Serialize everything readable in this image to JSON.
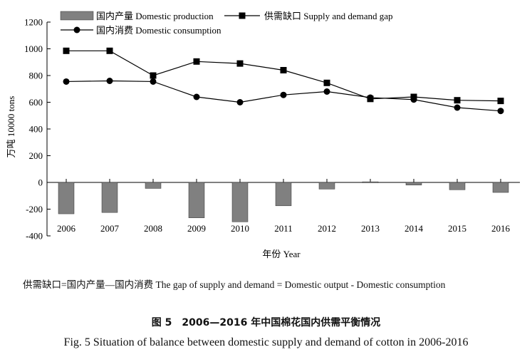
{
  "chart_data": {
    "type": "bar+line",
    "categories": [
      "2006",
      "2007",
      "2008",
      "2009",
      "2010",
      "2011",
      "2012",
      "2013",
      "2014",
      "2015",
      "2016"
    ],
    "series": [
      {
        "name": "国内产量 Domestic production",
        "kind": "bar",
        "values": [
          -235,
          -225,
          -45,
          -265,
          -295,
          -175,
          -50,
          5,
          -20,
          -55,
          -75
        ]
      },
      {
        "name": "供需缺口 Supply and demand gap",
        "kind": "line",
        "marker": "square",
        "values": [
          985,
          985,
          800,
          905,
          890,
          840,
          745,
          625,
          640,
          615,
          610
        ]
      },
      {
        "name": "国内消费 Domestic consumption",
        "kind": "line",
        "marker": "circle",
        "values": [
          755,
          760,
          755,
          640,
          600,
          655,
          680,
          635,
          620,
          560,
          535
        ]
      }
    ],
    "yticks": [
      -400,
      -200,
      0,
      200,
      400,
      600,
      800,
      1000,
      1200
    ],
    "ylim": [
      -400,
      1200
    ],
    "xlabel": "年份 Year",
    "ylabel": "万吨 10000 tons",
    "legend_position": "top-left",
    "grid": false
  },
  "note": "供需缺口=国内产量—国内消费    The gap of supply and demand = Domestic output - Domestic consumption",
  "caption_cn": "图 5　2006—2016 年中国棉花国内供需平衡情况",
  "caption_en": "Fig. 5    Situation of balance between domestic supply and demand of cotton in 2006-2016",
  "colors": {
    "bar": "#808080",
    "line": "#000000"
  }
}
